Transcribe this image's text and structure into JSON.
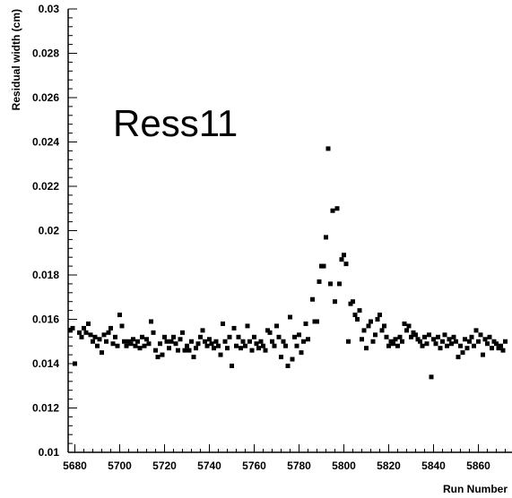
{
  "chart_data": {
    "type": "scatter",
    "title": "",
    "annotation": "Ress11",
    "xlabel": "Run Number",
    "ylabel": "Residual width (cm)",
    "xlim": [
      5677,
      5875
    ],
    "ylim": [
      0.01,
      0.03
    ],
    "x_ticks": [
      "5680",
      "5700",
      "5720",
      "5740",
      "5760",
      "5780",
      "5800",
      "5820",
      "5840",
      "5860"
    ],
    "y_ticks": [
      "0.01",
      "0.012",
      "0.014",
      "0.016",
      "0.018",
      "0.02",
      "0.022",
      "0.024",
      "0.026",
      "0.028",
      "0.03"
    ],
    "grid": false,
    "marker_color": "#000000",
    "series": [
      {
        "points": [
          [
            5678,
            0.0155
          ],
          [
            5679,
            0.0156
          ],
          [
            5680,
            0.014
          ],
          [
            5682,
            0.0154
          ],
          [
            5683,
            0.0152
          ],
          [
            5684,
            0.0156
          ],
          [
            5685,
            0.0154
          ],
          [
            5686,
            0.0158
          ],
          [
            5687,
            0.0153
          ],
          [
            5688,
            0.015
          ],
          [
            5689,
            0.0152
          ],
          [
            5690,
            0.0148
          ],
          [
            5691,
            0.0151
          ],
          [
            5692,
            0.0145
          ],
          [
            5693,
            0.0153
          ],
          [
            5694,
            0.015
          ],
          [
            5695,
            0.0154
          ],
          [
            5696,
            0.0156
          ],
          [
            5697,
            0.0149
          ],
          [
            5698,
            0.0152
          ],
          [
            5699,
            0.0148
          ],
          [
            5700,
            0.0162
          ],
          [
            5701,
            0.0157
          ],
          [
            5702,
            0.015
          ],
          [
            5703,
            0.0148
          ],
          [
            5704,
            0.015
          ],
          [
            5705,
            0.0149
          ],
          [
            5706,
            0.0151
          ],
          [
            5707,
            0.0148
          ],
          [
            5708,
            0.015
          ],
          [
            5709,
            0.0147
          ],
          [
            5710,
            0.0152
          ],
          [
            5711,
            0.0148
          ],
          [
            5712,
            0.0151
          ],
          [
            5713,
            0.0149
          ],
          [
            5714,
            0.0159
          ],
          [
            5715,
            0.0154
          ],
          [
            5716,
            0.0146
          ],
          [
            5717,
            0.0143
          ],
          [
            5718,
            0.0149
          ],
          [
            5719,
            0.0144
          ],
          [
            5720,
            0.0152
          ],
          [
            5721,
            0.015
          ],
          [
            5722,
            0.0147
          ],
          [
            5723,
            0.015
          ],
          [
            5724,
            0.0152
          ],
          [
            5725,
            0.0149
          ],
          [
            5726,
            0.0146
          ],
          [
            5727,
            0.0151
          ],
          [
            5728,
            0.0154
          ],
          [
            5729,
            0.0146
          ],
          [
            5730,
            0.0148
          ],
          [
            5731,
            0.0146
          ],
          [
            5732,
            0.015
          ],
          [
            5733,
            0.0143
          ],
          [
            5734,
            0.0147
          ],
          [
            5735,
            0.0149
          ],
          [
            5736,
            0.0152
          ],
          [
            5737,
            0.0155
          ],
          [
            5738,
            0.015
          ],
          [
            5739,
            0.0148
          ],
          [
            5740,
            0.0151
          ],
          [
            5741,
            0.0149
          ],
          [
            5742,
            0.0147
          ],
          [
            5743,
            0.015
          ],
          [
            5744,
            0.0148
          ],
          [
            5745,
            0.0144
          ],
          [
            5746,
            0.0158
          ],
          [
            5747,
            0.015
          ],
          [
            5748,
            0.0147
          ],
          [
            5749,
            0.0152
          ],
          [
            5750,
            0.0139
          ],
          [
            5751,
            0.0156
          ],
          [
            5752,
            0.0148
          ],
          [
            5753,
            0.0152
          ],
          [
            5754,
            0.0147
          ],
          [
            5755,
            0.015
          ],
          [
            5756,
            0.0148
          ],
          [
            5757,
            0.0157
          ],
          [
            5758,
            0.015
          ],
          [
            5759,
            0.0146
          ],
          [
            5760,
            0.0152
          ],
          [
            5761,
            0.0149
          ],
          [
            5762,
            0.0147
          ],
          [
            5763,
            0.015
          ],
          [
            5764,
            0.0148
          ],
          [
            5765,
            0.0146
          ],
          [
            5766,
            0.0155
          ],
          [
            5767,
            0.0154
          ],
          [
            5768,
            0.015
          ],
          [
            5769,
            0.0148
          ],
          [
            5770,
            0.0157
          ],
          [
            5771,
            0.0152
          ],
          [
            5772,
            0.0143
          ],
          [
            5773,
            0.015
          ],
          [
            5774,
            0.0148
          ],
          [
            5775,
            0.0139
          ],
          [
            5776,
            0.0161
          ],
          [
            5777,
            0.0142
          ],
          [
            5778,
            0.0152
          ],
          [
            5779,
            0.0148
          ],
          [
            5780,
            0.0153
          ],
          [
            5781,
            0.0145
          ],
          [
            5782,
            0.015
          ],
          [
            5783,
            0.0158
          ],
          [
            5784,
            0.0151
          ],
          [
            5786,
            0.0169
          ],
          [
            5787,
            0.0159
          ],
          [
            5788,
            0.0159
          ],
          [
            5789,
            0.0177
          ],
          [
            5790,
            0.0184
          ],
          [
            5791,
            0.0184
          ],
          [
            5792,
            0.0197
          ],
          [
            5793,
            0.0237
          ],
          [
            5794,
            0.0176
          ],
          [
            5795,
            0.0209
          ],
          [
            5796,
            0.0168
          ],
          [
            5797,
            0.021
          ],
          [
            5798,
            0.0176
          ],
          [
            5799,
            0.0187
          ],
          [
            5800,
            0.0189
          ],
          [
            5801,
            0.0185
          ],
          [
            5802,
            0.015
          ],
          [
            5803,
            0.0167
          ],
          [
            5804,
            0.0168
          ],
          [
            5805,
            0.0162
          ],
          [
            5806,
            0.016
          ],
          [
            5807,
            0.0164
          ],
          [
            5808,
            0.0151
          ],
          [
            5809,
            0.0155
          ],
          [
            5810,
            0.0147
          ],
          [
            5811,
            0.0157
          ],
          [
            5812,
            0.0159
          ],
          [
            5813,
            0.015
          ],
          [
            5814,
            0.0153
          ],
          [
            5815,
            0.016
          ],
          [
            5816,
            0.0162
          ],
          [
            5817,
            0.0155
          ],
          [
            5818,
            0.0157
          ],
          [
            5819,
            0.0152
          ],
          [
            5820,
            0.0148
          ],
          [
            5821,
            0.015
          ],
          [
            5822,
            0.0149
          ],
          [
            5823,
            0.0151
          ],
          [
            5824,
            0.0148
          ],
          [
            5825,
            0.0152
          ],
          [
            5826,
            0.015
          ],
          [
            5827,
            0.0158
          ],
          [
            5828,
            0.0155
          ],
          [
            5829,
            0.0157
          ],
          [
            5830,
            0.0152
          ],
          [
            5831,
            0.0154
          ],
          [
            5832,
            0.0153
          ],
          [
            5833,
            0.0151
          ],
          [
            5834,
            0.015
          ],
          [
            5835,
            0.0148
          ],
          [
            5836,
            0.0152
          ],
          [
            5837,
            0.0149
          ],
          [
            5838,
            0.0153
          ],
          [
            5839,
            0.0134
          ],
          [
            5840,
            0.0151
          ],
          [
            5841,
            0.0149
          ],
          [
            5842,
            0.0152
          ],
          [
            5843,
            0.0147
          ],
          [
            5844,
            0.015
          ],
          [
            5845,
            0.0153
          ],
          [
            5846,
            0.0148
          ],
          [
            5847,
            0.0151
          ],
          [
            5848,
            0.0149
          ],
          [
            5849,
            0.0152
          ],
          [
            5850,
            0.015
          ],
          [
            5851,
            0.0143
          ],
          [
            5852,
            0.0148
          ],
          [
            5853,
            0.0145
          ],
          [
            5854,
            0.0151
          ],
          [
            5855,
            0.0147
          ],
          [
            5856,
            0.015
          ],
          [
            5857,
            0.0152
          ],
          [
            5858,
            0.0148
          ],
          [
            5859,
            0.0155
          ],
          [
            5860,
            0.015
          ],
          [
            5861,
            0.0153
          ],
          [
            5862,
            0.0144
          ],
          [
            5863,
            0.0151
          ],
          [
            5864,
            0.0149
          ],
          [
            5865,
            0.0152
          ],
          [
            5866,
            0.0147
          ],
          [
            5867,
            0.015
          ],
          [
            5868,
            0.0149
          ],
          [
            5869,
            0.0147
          ],
          [
            5870,
            0.0148
          ],
          [
            5871,
            0.0146
          ],
          [
            5872,
            0.015
          ]
        ]
      }
    ]
  }
}
